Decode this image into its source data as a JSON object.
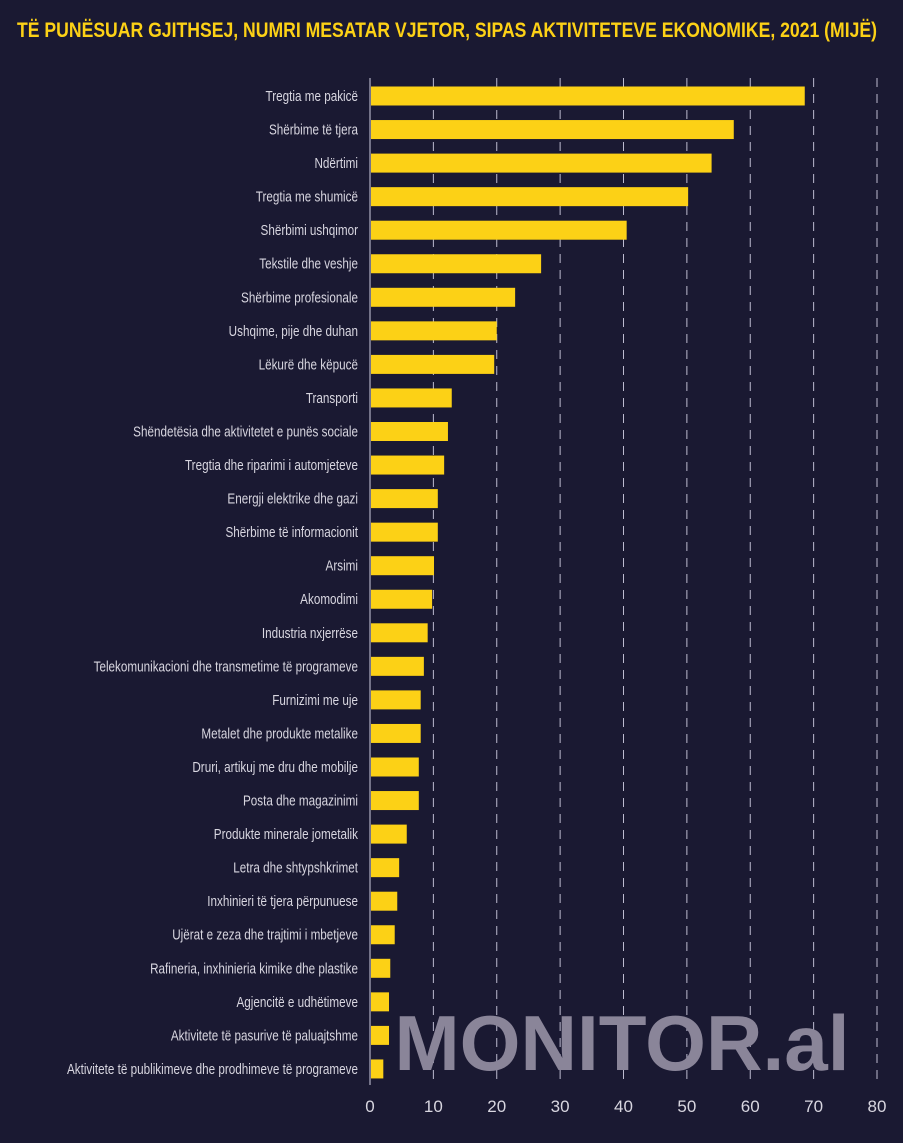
{
  "chart_data": {
    "type": "bar",
    "orientation": "horizontal",
    "title": "TË PUNËSUAR GJITHSEJ, NUMRI MESATAR VJETOR, SIPAS AKTIVITETEVE EKONOMIKE, 2021 (MIJË)",
    "xlabel": "",
    "ylabel": "",
    "xlim": [
      0,
      80
    ],
    "xticks": [
      0,
      10,
      20,
      30,
      40,
      50,
      60,
      70,
      80
    ],
    "grid": "vertical dashed",
    "categories": [
      "Tregtia me pakicë",
      "Shërbime të tjera",
      "Ndërtimi",
      "Tregtia me  shumicë",
      "Shërbimi ushqimor",
      "Tekstile dhe veshje",
      "Shërbime profesionale",
      "Ushqime, pije dhe duhan",
      "Lëkurë dhe këpucë",
      "Transporti",
      "Shëndetësia dhe aktivitetet e punës sociale",
      "Tregtia dhe riparimi i automjeteve",
      "Energji elektrike dhe gazi",
      "Shërbime të informacionit",
      "Arsimi",
      "Akomodimi",
      "Industria nxjerrëse",
      "Telekomunikacioni dhe transmetime të programeve",
      "Furnizimi me uje",
      "Metalet dhe produkte metalike",
      "Druri, artikuj me dru dhe mobilje",
      "Posta dhe magazinimi",
      "Produkte minerale jometalik",
      "Letra dhe shtypshkrimet",
      "Inxhinieri të tjera përpunuese",
      "Ujërat e zeza dhe trajtimi i mbetjeve",
      "Rafineria, inxhinieria kimike dhe plastike",
      "Agjencitë e udhëtimeve",
      "Aktivitete të pasurive të paluajtshme",
      "Aktivitete të publikimeve dhe prodhimeve të programeve"
    ],
    "values": [
      68.6,
      57.4,
      53.9,
      50.2,
      40.5,
      27.0,
      22.9,
      20.0,
      19.6,
      12.9,
      12.3,
      11.7,
      10.7,
      10.7,
      10.1,
      9.8,
      9.1,
      8.5,
      8.0,
      8.0,
      7.7,
      7.7,
      5.8,
      4.6,
      4.3,
      3.9,
      3.2,
      3.0,
      3.0,
      2.1
    ],
    "colors": {
      "bar": "#fcd116",
      "background": "#1a1932",
      "title": "#fcd116",
      "text": "#d8d6e0",
      "watermark": "#8a8599"
    }
  },
  "watermark": "MONITOR.al"
}
